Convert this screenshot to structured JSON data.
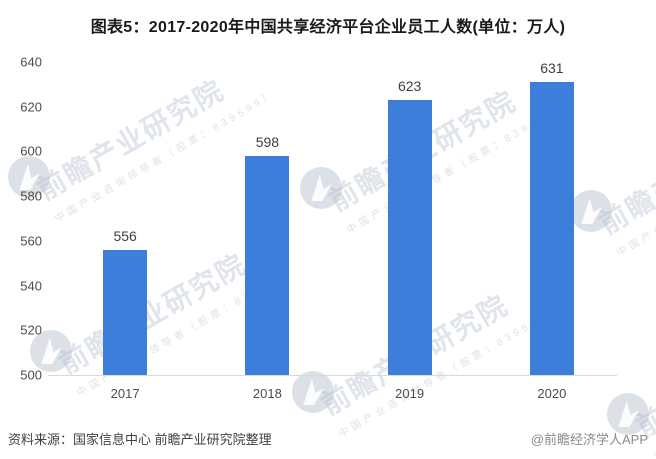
{
  "title": "图表5：2017-2020年中国共享经济平台企业员工人数(单位：万人)",
  "chart_data": {
    "type": "bar",
    "categories": [
      "2017",
      "2018",
      "2019",
      "2020"
    ],
    "values": [
      556,
      598,
      623,
      631
    ],
    "title": "图表5：2017-2020年中国共享经济平台企业员工人数(单位：万人)",
    "xlabel": "",
    "ylabel": "",
    "unit": "万人",
    "ylim": [
      500,
      640
    ],
    "ytick_step": 20,
    "grid": false,
    "legend": false,
    "data_labels": true,
    "bar_color": "#3d7edb"
  },
  "footer": {
    "source": "资料来源：国家信息中心 前瞻产业研究院整理",
    "credit": "@前瞻经济学人APP"
  },
  "watermark": {
    "logo_icon": "qianzhan-bird-logo-icon",
    "main_text": "前瞻产业研究院",
    "sub_text": "中国产业咨询领导者（股票：839599）",
    "color": "#b2bccc"
  },
  "colors": {
    "background": "#ffffff",
    "bar": "#3d7edb",
    "axis_line": "#d9d9d9",
    "tick_text": "#4d4d4d",
    "value_label_text": "#3d3d3d",
    "title_text": "#1a1a1a",
    "source_text": "#404040",
    "credit_text": "#8a8a8a"
  }
}
